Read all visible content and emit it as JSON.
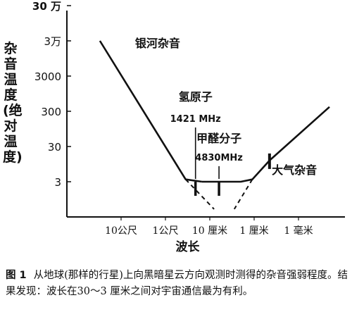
{
  "chart_data": {
    "type": "line",
    "ylabel": "杂音温度(绝对温度)",
    "xlabel": "波长",
    "y_scale": "log",
    "y_ticks": [
      {
        "label": "30 万",
        "value": 300000
      },
      {
        "label": "3万",
        "value": 30000
      },
      {
        "label": "3000",
        "value": 3000
      },
      {
        "label": "300",
        "value": 300
      },
      {
        "label": "30",
        "value": 30
      },
      {
        "label": "3",
        "value": 3
      }
    ],
    "x_scale": "log",
    "x_ticks": [
      {
        "label": "10公尺",
        "value": 10
      },
      {
        "label": "1公尺",
        "value": 1
      },
      {
        "label": "10 厘米",
        "value": 0.1
      },
      {
        "label": "1 厘米",
        "value": 0.01
      },
      {
        "label": "1 毫米",
        "value": 0.001
      }
    ],
    "series": [
      {
        "name": "银河杂音",
        "style": "solid",
        "points": [
          [
            30,
            30000
          ],
          [
            0.35,
            3.5
          ],
          [
            0.15,
            3
          ]
        ]
      },
      {
        "name": "",
        "style": "dashed",
        "points": [
          [
            0.35,
            3.5
          ],
          [
            0.08,
            0.5
          ]
        ]
      },
      {
        "name": "",
        "style": "solid",
        "points": [
          [
            0.15,
            3
          ],
          [
            0.02,
            3
          ],
          [
            0.011,
            3.5
          ],
          [
            0.0045,
            12
          ],
          [
            0.0002,
            400
          ]
        ]
      },
      {
        "name": "",
        "style": "dashed",
        "points": [
          [
            0.011,
            3.5
          ],
          [
            0.028,
            0.5
          ]
        ]
      }
    ],
    "annotations": [
      {
        "text": "银河杂音",
        "x": 1.5,
        "y": 20000
      },
      {
        "text": "氢原子",
        "x": 0.21,
        "y": 600
      },
      {
        "text": "1421 MHz",
        "x": 0.21,
        "y": 150
      },
      {
        "text": "甲醛分子",
        "x": 0.062,
        "y": 40
      },
      {
        "text": "4830MHz",
        "x": 0.062,
        "y": 12
      },
      {
        "text": "大气杂音",
        "x": 0.004,
        "y": 5
      }
    ]
  },
  "caption": {
    "figure_label": "图 1",
    "text": "从地球(那样的行星)上向黑暗星云方向观测时测得的杂音强弱程度。结果发现：波长在30～3 厘米之间对宇宙通信最为有利。"
  }
}
